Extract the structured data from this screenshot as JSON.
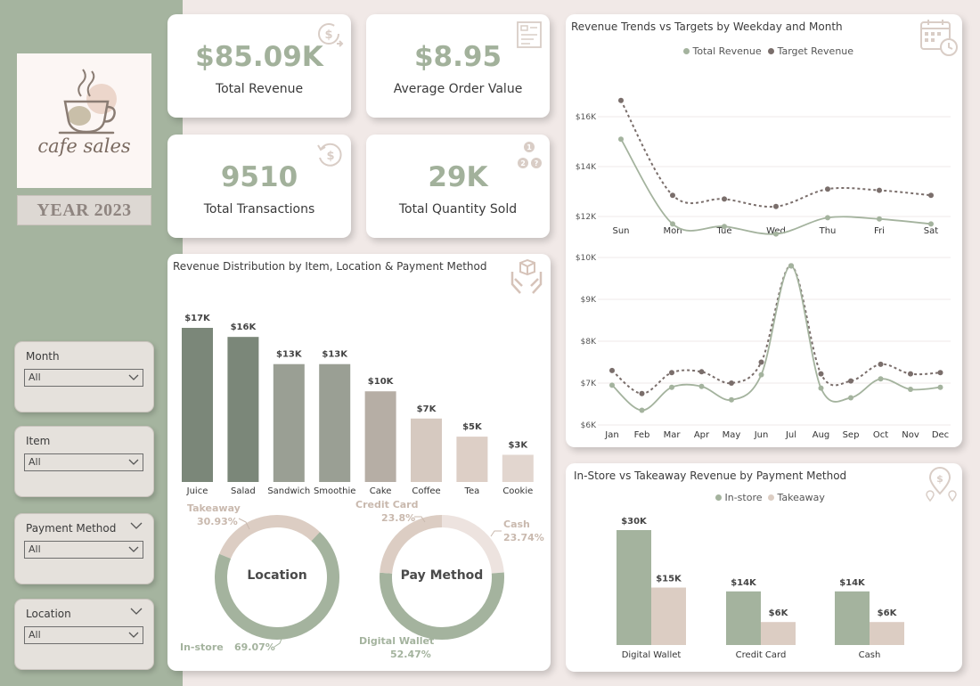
{
  "sidebar": {
    "logo_text": "cafe sales",
    "year": "YEAR 2023",
    "slicers": [
      {
        "label": "Month",
        "value": "All",
        "header_chevron": false
      },
      {
        "label": "Item",
        "value": "All",
        "header_chevron": false
      },
      {
        "label": "Payment Method",
        "value": "All",
        "header_chevron": true
      },
      {
        "label": "Location",
        "value": "All",
        "header_chevron": true
      }
    ]
  },
  "kpis": [
    {
      "value": "$85.09K",
      "label": "Total Revenue",
      "icon": "dollar-icon"
    },
    {
      "value": "$8.95",
      "label": "Average Order Value",
      "icon": "receipt-icon"
    },
    {
      "value": "9510",
      "label": "Total Transactions",
      "icon": "dollar-refresh-icon"
    },
    {
      "value": "29K",
      "label": "Total Quantity Sold",
      "icon": "quantity-icon"
    }
  ],
  "colors": {
    "sage": "#a4b39e",
    "dark_sage": "#7a8579",
    "beige": "#ddcdc3",
    "light_beige": "#ede3df",
    "target": "#7a6e6b"
  },
  "revenue_distribution": {
    "title": "Revenue Distribution by Item, Location & Payment Method",
    "chart_data": {
      "type": "bar",
      "categories": [
        "Juice",
        "Salad",
        "Sandwich",
        "Smoothie",
        "Cake",
        "Coffee",
        "Tea",
        "Cookie"
      ],
      "values": [
        17,
        16,
        13,
        13,
        10,
        7,
        5,
        3
      ],
      "labels": [
        "$17K",
        "$16K",
        "$13K",
        "$13K",
        "$10K",
        "$7K",
        "$5K",
        "$3K"
      ],
      "colors": [
        "#7b8779",
        "#7b8779",
        "#9a9f94",
        "#9a9f94",
        "#b6aea5",
        "#d6c9c0",
        "#ddcfc6",
        "#e2d6cf"
      ]
    },
    "location_donut": {
      "center": "Location",
      "chart_data": {
        "type": "pie",
        "slices": [
          {
            "name": "Takeaway",
            "value": 30.93,
            "label": "30.93%",
            "color": "#dccdc3"
          },
          {
            "name": "In-store",
            "value": 69.07,
            "label": "69.07%",
            "color": "#a4b39e"
          }
        ]
      }
    },
    "payment_donut": {
      "center": "Pay Method",
      "chart_data": {
        "type": "pie",
        "slices": [
          {
            "name": "Cash",
            "value": 23.74,
            "label": "23.74%",
            "color": "#ede3df"
          },
          {
            "name": "Digital Wallet",
            "value": 52.47,
            "label": "52.47%",
            "color": "#a4b39e"
          },
          {
            "name": "Credit Card",
            "value": 23.8,
            "label": "23.8%",
            "color": "#dccdc3"
          }
        ]
      }
    }
  },
  "trends": {
    "title": "Revenue Trends vs Targets by Weekday and Month",
    "legend": [
      "Total Revenue",
      "Target Revenue"
    ],
    "weekday_chart": {
      "chart_data": {
        "type": "line",
        "categories": [
          "Sun",
          "Mon",
          "Tue",
          "Wed",
          "Thu",
          "Fri",
          "Sat"
        ],
        "series": [
          {
            "name": "Total Revenue",
            "values": [
              15.1,
              11.7,
              11.6,
              11.3,
              11.95,
              11.9,
              11.7
            ],
            "color": "#a4b39e"
          },
          {
            "name": "Target Revenue",
            "values": [
              16.65,
              12.85,
              12.7,
              12.4,
              13.1,
              13.05,
              12.85
            ],
            "color": "#7a6e6b"
          }
        ],
        "yticks": [
          {
            "v": 12,
            "label": "$12K"
          },
          {
            "v": 14,
            "label": "$14K"
          },
          {
            "v": 16,
            "label": "$16K"
          }
        ],
        "ylim": [
          11,
          17
        ]
      }
    },
    "month_chart": {
      "chart_data": {
        "type": "line",
        "categories": [
          "Jan",
          "Feb",
          "Mar",
          "Apr",
          "May",
          "Jun",
          "Jul",
          "Aug",
          "Sep",
          "Oct",
          "Nov",
          "Dec"
        ],
        "series": [
          {
            "name": "Total Revenue",
            "values": [
              6.95,
              6.35,
              6.9,
              6.92,
              6.6,
              7.2,
              9.8,
              6.88,
              6.65,
              7.1,
              6.85,
              6.9
            ],
            "color": "#a4b39e"
          },
          {
            "name": "Target Revenue",
            "values": [
              7.3,
              6.75,
              7.25,
              7.27,
              7.0,
              7.5,
              9.8,
              7.22,
              7.05,
              7.45,
              7.22,
              7.25
            ],
            "color": "#7a6e6b"
          }
        ],
        "yticks": [
          {
            "v": 6,
            "label": "$6K"
          },
          {
            "v": 7,
            "label": "$7K"
          },
          {
            "v": 8,
            "label": "$8K"
          },
          {
            "v": 9,
            "label": "$9K"
          },
          {
            "v": 10,
            "label": "$10K"
          }
        ],
        "ylim": [
          6,
          10
        ]
      }
    }
  },
  "instore_takeaway": {
    "title": "In-Store vs Takeaway Revenue by Payment Method",
    "legend": [
      "In-store",
      "Takeaway"
    ],
    "chart_data": {
      "type": "bar",
      "categories": [
        "Digital Wallet",
        "Credit Card",
        "Cash"
      ],
      "series": [
        {
          "name": "In-store",
          "values": [
            30,
            14,
            14
          ],
          "labels": [
            "$30K",
            "$14K",
            "$14K"
          ],
          "color": "#a4b39e"
        },
        {
          "name": "Takeaway",
          "values": [
            15,
            6,
            6
          ],
          "labels": [
            "$15K",
            "$6K",
            "$6K"
          ],
          "color": "#dccdc3"
        }
      ],
      "ylim": [
        0,
        30
      ]
    }
  }
}
